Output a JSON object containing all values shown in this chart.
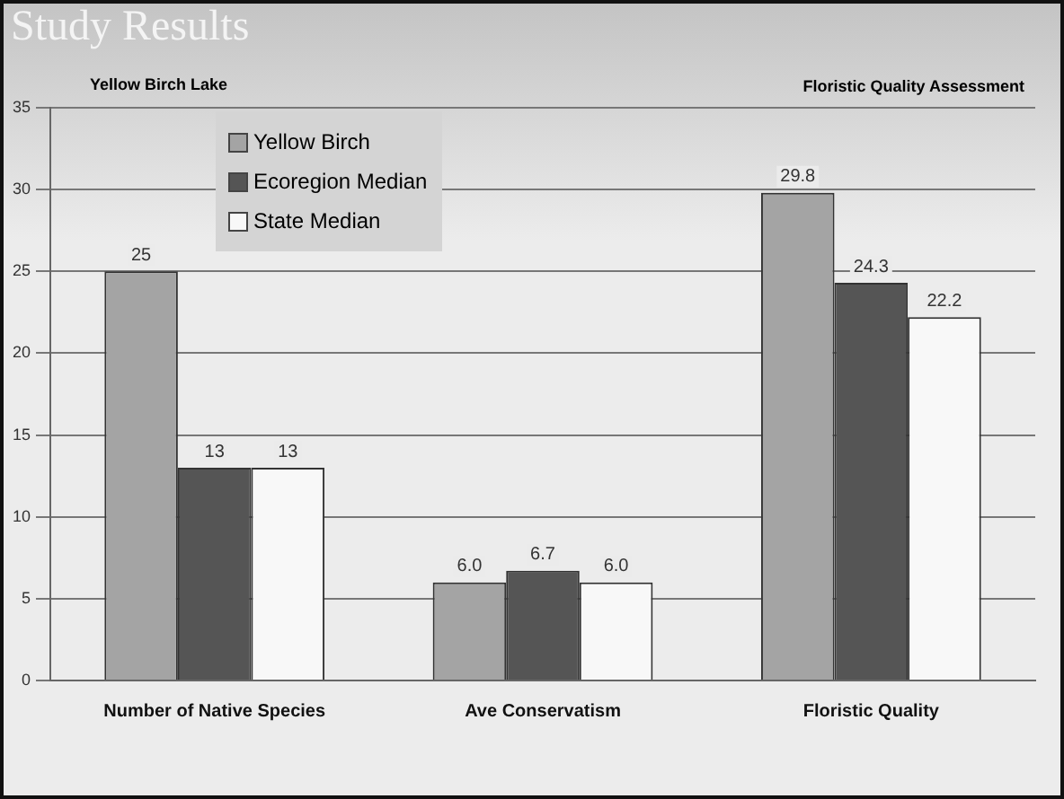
{
  "chart_data": {
    "type": "bar",
    "title": "Study Results",
    "subtitle": "Yellow Birch Lake",
    "annotations": [
      "Floristic Quality Assessment"
    ],
    "categories": [
      "Number of Native Species",
      "Ave Conservatism",
      "Floristic Quality"
    ],
    "series": [
      {
        "name": "Yellow Birch",
        "color": "#a4a4a4",
        "values": [
          25,
          6.0,
          29.8
        ],
        "value_labels": [
          "25",
          "6.0",
          "29.8"
        ]
      },
      {
        "name": "Ecoregion Median",
        "color": "#555555",
        "values": [
          13,
          6.7,
          24.3
        ],
        "value_labels": [
          "13",
          "6.7",
          "24.3"
        ]
      },
      {
        "name": "State Median",
        "color": "#f8f8f8",
        "values": [
          13,
          6.0,
          22.2
        ],
        "value_labels": [
          "13",
          "6.0",
          "22.2"
        ]
      }
    ],
    "ylim": [
      0,
      35
    ],
    "yticks": [
      0,
      5,
      10,
      15,
      20,
      25,
      30,
      35
    ],
    "grid": "y",
    "legend": "top left"
  }
}
